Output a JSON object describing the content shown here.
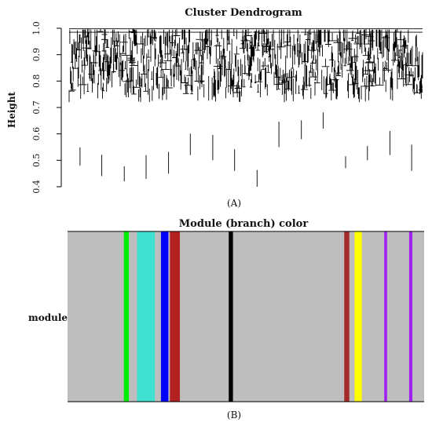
{
  "chart_data": [
    {
      "type": "dendrogram",
      "title": "Cluster Dendrogram",
      "ylabel": "Height",
      "ylim": [
        0.4,
        1.0
      ],
      "yticks": [
        "0.4",
        "0.5",
        "0.6",
        "0.7",
        "0.8",
        "0.9",
        "1.0"
      ],
      "caption": "(A)",
      "deep_leaf_heights": [
        0.48,
        0.44,
        0.42,
        0.43,
        0.45,
        0.52,
        0.5,
        0.46,
        0.4,
        0.55,
        0.58,
        0.62,
        0.47,
        0.5,
        0.52,
        0.46
      ]
    },
    {
      "type": "color-bar",
      "title": "Module (branch) color",
      "row_label": "module",
      "caption": "(B)",
      "background_color": "#bebebe",
      "bands": [
        {
          "color": "#00ee00",
          "start": 0.158,
          "end": 0.172
        },
        {
          "color": "#40e0d0",
          "start": 0.195,
          "end": 0.245
        },
        {
          "color": "#0000ff",
          "start": 0.262,
          "end": 0.283
        },
        {
          "color": "#b22222",
          "start": 0.287,
          "end": 0.315
        },
        {
          "color": "#000000",
          "start": 0.452,
          "end": 0.464
        },
        {
          "color": "#a52a2a",
          "start": 0.776,
          "end": 0.79
        },
        {
          "color": "#ffff00",
          "start": 0.805,
          "end": 0.825
        },
        {
          "color": "#a020f0",
          "start": 0.888,
          "end": 0.896
        },
        {
          "color": "#a020f0",
          "start": 0.958,
          "end": 0.967
        }
      ]
    }
  ]
}
